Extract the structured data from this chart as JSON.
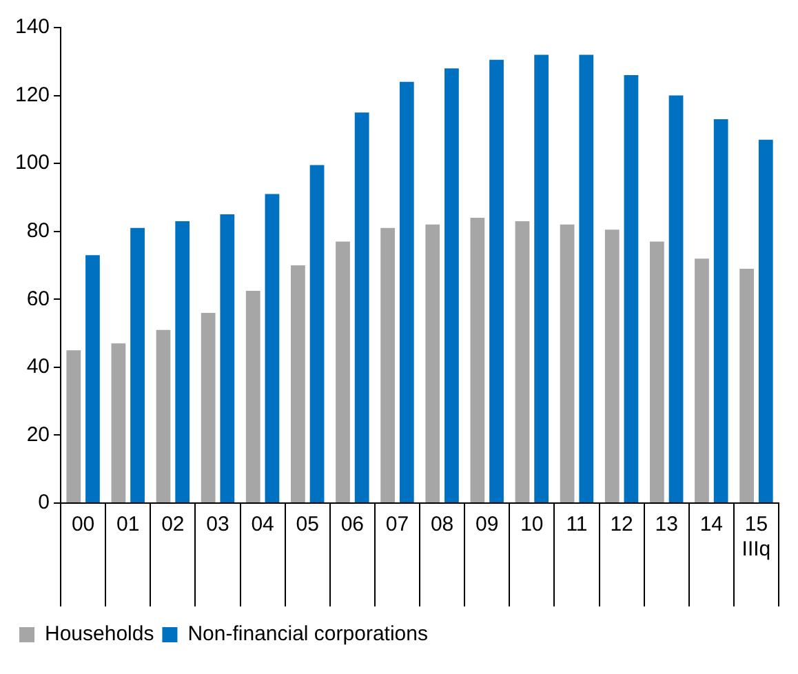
{
  "chart_data": {
    "type": "bar",
    "categories": [
      "00",
      "01",
      "02",
      "03",
      "04",
      "05",
      "06",
      "07",
      "08",
      "09",
      "10",
      "11",
      "12",
      "13",
      "14",
      "15\nIIIq"
    ],
    "series": [
      {
        "name": "Households",
        "color": "#a6a6a6",
        "values": [
          45,
          47,
          51,
          56,
          62.5,
          70,
          77,
          81,
          82,
          84,
          83,
          82,
          80.5,
          77,
          72,
          69
        ]
      },
      {
        "name": "Non-financial corporations",
        "color": "#0070c0",
        "values": [
          73,
          81,
          83,
          85,
          91,
          99.5,
          115,
          124,
          128,
          130.5,
          132,
          132,
          126,
          120,
          113,
          107
        ]
      }
    ],
    "ylim": [
      0,
      140
    ],
    "yticks": [
      0,
      20,
      40,
      60,
      80,
      100,
      120,
      140
    ],
    "legend": "bottom"
  }
}
